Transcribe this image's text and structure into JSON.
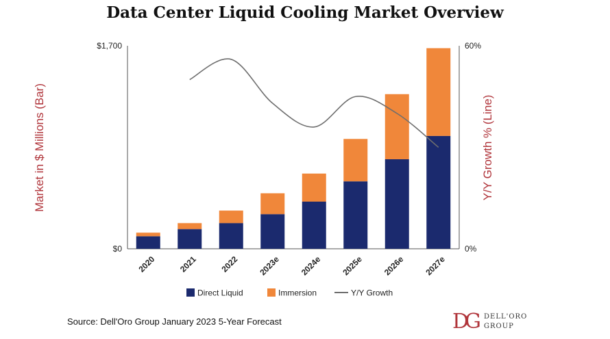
{
  "chart_data": {
    "type": "bar",
    "title": "Data Center Liquid Cooling Market Overview",
    "categories": [
      "2020",
      "2021",
      "2022",
      "2023e",
      "2024e",
      "2025e",
      "2026e",
      "2027e"
    ],
    "series": [
      {
        "name": "Direct Liquid",
        "chart": "stacked-bar",
        "axis": "left",
        "color": "#1b2a6e",
        "values": [
          105,
          165,
          215,
          290,
          395,
          565,
          750,
          945
        ]
      },
      {
        "name": "Immersion",
        "chart": "stacked-bar",
        "axis": "left",
        "color": "#f0873a",
        "values": [
          30,
          50,
          105,
          175,
          235,
          355,
          545,
          735
        ]
      },
      {
        "name": "Y/Y Growth",
        "chart": "line",
        "axis": "right",
        "color": "#6e6e6e",
        "x": [
          1,
          2,
          3,
          4,
          5,
          6,
          7
        ],
        "values": [
          50,
          56,
          43,
          36,
          45,
          40,
          30
        ]
      }
    ],
    "yleft": {
      "label": "Market in $ Millions (Bar)",
      "ylim": [
        0,
        1700
      ],
      "ticks": [
        "$0",
        "$1,700"
      ]
    },
    "yright": {
      "label": "Y/Y Growth % (Line)",
      "ylim": [
        0,
        60
      ],
      "ticks": [
        "0%",
        "60%"
      ]
    },
    "legend": {
      "position": "bottom",
      "items": [
        "Direct Liquid",
        "Immersion",
        "Y/Y Growth"
      ]
    },
    "grid": false
  },
  "source": "Source: Dell'Oro Group January 2023 5-Year Forecast",
  "logo": {
    "mark": "DG",
    "line1": "DELL'ORO",
    "line2": "GROUP"
  }
}
